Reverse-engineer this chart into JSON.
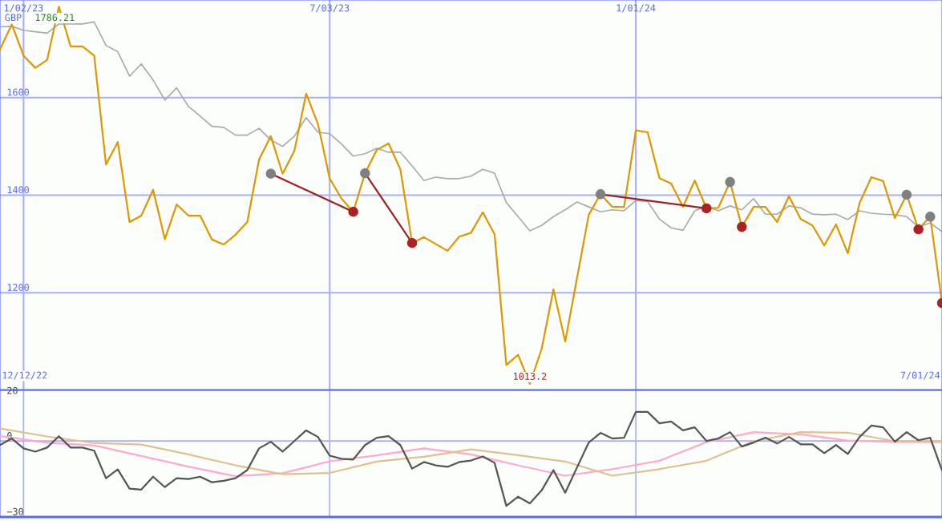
{
  "chart_data": [
    {
      "type": "line",
      "x": [
        "2022-12-19",
        "2022-12-26",
        "2023-01-02",
        "2023-01-09",
        "2023-01-16",
        "2023-01-23",
        "2023-01-30",
        "2023-02-06",
        "2023-02-13",
        "2023-02-20",
        "2023-02-27",
        "2023-03-06",
        "2023-03-13",
        "2023-03-20",
        "2023-03-27",
        "2023-04-03",
        "2023-04-10",
        "2023-04-17",
        "2023-04-24",
        "2023-05-01",
        "2023-05-08",
        "2023-05-15",
        "2023-05-22",
        "2023-05-29",
        "2023-06-05",
        "2023-06-12",
        "2023-06-19",
        "2023-06-26",
        "2023-07-03",
        "2023-07-10",
        "2023-07-17",
        "2023-07-24",
        "2023-07-31",
        "2023-08-07",
        "2023-08-14",
        "2023-08-21",
        "2023-08-28",
        "2023-09-04",
        "2023-09-11",
        "2023-09-18",
        "2023-09-25",
        "2023-10-02",
        "2023-10-09",
        "2023-10-16",
        "2023-10-23",
        "2023-10-30",
        "2023-11-06",
        "2023-11-13",
        "2023-11-20",
        "2023-11-27",
        "2023-12-04",
        "2023-12-11",
        "2023-12-18",
        "2023-12-25",
        "2024-01-01",
        "2024-01-08",
        "2024-01-15",
        "2024-01-22",
        "2024-01-29",
        "2024-02-05",
        "2024-02-12",
        "2024-02-19",
        "2024-02-26",
        "2024-03-04",
        "2024-03-11",
        "2024-03-18",
        "2024-03-25",
        "2024-04-01",
        "2024-04-08",
        "2024-04-15",
        "2024-04-22",
        "2024-04-29",
        "2024-05-06",
        "2024-05-13",
        "2024-05-20",
        "2024-05-27",
        "2024-06-03",
        "2024-06-10",
        "2024-06-17",
        "2024-06-24",
        "2024-07-01"
      ],
      "series": [
        {
          "color": "#aaaaaa",
          "values": [
            1745,
            1746,
            1738,
            1735,
            1732,
            1751,
            1751,
            1751,
            1755,
            1707,
            1694,
            1644,
            1669,
            1636,
            1595,
            1620,
            1582,
            1562,
            1541,
            1539,
            1523,
            1523,
            1537,
            1513,
            1500,
            1521,
            1559,
            1529,
            1526,
            1505,
            1480,
            1485,
            1496,
            1488,
            1488,
            1460,
            1430,
            1437,
            1434,
            1434,
            1439,
            1453,
            1445,
            1385,
            1356,
            1327,
            1338,
            1356,
            1370,
            1386,
            1376,
            1366,
            1370,
            1368,
            1389,
            1387,
            1351,
            1333,
            1328,
            1368,
            1378,
            1368,
            1378,
            1370,
            1393,
            1361,
            1361,
            1378,
            1374,
            1361,
            1360,
            1361,
            1350,
            1368,
            1363,
            1361,
            1360,
            1356,
            1335,
            1343,
            1325
          ]
        },
        {
          "color": "#dd9900",
          "values": [
            1699,
            1750,
            1686,
            1661,
            1677,
            1786.21,
            1705,
            1705,
            1686,
            1463,
            1509,
            1345,
            1358,
            1411,
            1310,
            1381,
            1358,
            1358,
            1309,
            1299,
            1319,
            1345,
            1473,
            1521,
            1444,
            1491,
            1608,
            1546,
            1434,
            1393,
            1366,
            1445,
            1493,
            1506,
            1453,
            1302,
            1314,
            1300,
            1286,
            1315,
            1323,
            1365,
            1320,
            1052,
            1073,
            1013.2,
            1085,
            1207,
            1100,
            1230,
            1360,
            1402,
            1376,
            1376,
            1533,
            1529,
            1435,
            1424,
            1376,
            1430,
            1373,
            1374,
            1427,
            1335,
            1376,
            1376,
            1345,
            1398,
            1351,
            1338,
            1297,
            1340,
            1281,
            1384,
            1437,
            1429,
            1353,
            1401,
            1330,
            1356,
            1179
          ]
        },
        {
          "color": "#992222",
          "x": [
            "2023-05-29",
            "2023-07-17"
          ],
          "values": [
            1444,
            1366
          ]
        },
        {
          "color": "#992222",
          "x": [
            "2023-07-24",
            "2023-08-21"
          ],
          "values": [
            1445,
            1302
          ]
        },
        {
          "color": "#992222",
          "x": [
            "2023-12-11",
            "2024-02-12"
          ],
          "values": [
            1402,
            1373
          ]
        },
        {
          "type": "scatter",
          "color": "#808080",
          "x": [
            "2023-05-29",
            "2023-07-24",
            "2023-12-11",
            "2024-02-26",
            "2024-06-10",
            "2024-06-24"
          ],
          "values": [
            1444,
            1445,
            1402,
            1427,
            1401,
            1356
          ]
        },
        {
          "type": "scatter",
          "color": "#aa2222",
          "x": [
            "2023-07-17",
            "2023-08-21",
            "2024-02-12",
            "2024-03-04",
            "2024-06-17",
            "2024-07-01"
          ],
          "values": [
            1366,
            1302,
            1373,
            1335,
            1330,
            1179
          ]
        }
      ],
      "xlim": [
        "2022-12-19",
        "2024-07-01"
      ],
      "xticks": [
        {
          "value": "2023-01-02",
          "label": "1/02/23"
        },
        {
          "value": "2023-07-03",
          "label": "7/03/23"
        },
        {
          "value": "2024-01-01",
          "label": "1/01/24"
        }
      ],
      "ylim": [
        1000,
        1800
      ],
      "yticks": [
        1200,
        1400,
        1600
      ],
      "grid": true,
      "annotations": [
        "GBP",
        "1786.21",
        "12/12/22",
        "7/01/24",
        {
          "text": "1013.2",
          "x": "2023-10-30",
          "y": 1013.2
        }
      ]
    },
    {
      "type": "line",
      "x": [
        "2022-12-19",
        "2022-12-26",
        "2023-01-02",
        "2023-01-09",
        "2023-01-16",
        "2023-01-23",
        "2023-01-30",
        "2023-02-06",
        "2023-02-13",
        "2023-02-20",
        "2023-02-27",
        "2023-03-06",
        "2023-03-13",
        "2023-03-20",
        "2023-03-27",
        "2023-04-03",
        "2023-04-10",
        "2023-04-17",
        "2023-04-24",
        "2023-05-01",
        "2023-05-08",
        "2023-05-15",
        "2023-05-22",
        "2023-05-29",
        "2023-06-05",
        "2023-06-12",
        "2023-06-19",
        "2023-06-26",
        "2023-07-03",
        "2023-07-10",
        "2023-07-17",
        "2023-07-24",
        "2023-07-31",
        "2023-08-07",
        "2023-08-14",
        "2023-08-21",
        "2023-08-28",
        "2023-09-04",
        "2023-09-11",
        "2023-09-18",
        "2023-09-25",
        "2023-10-02",
        "2023-10-09",
        "2023-10-16",
        "2023-10-23",
        "2023-10-30",
        "2023-11-06",
        "2023-11-13",
        "2023-11-20",
        "2023-11-27",
        "2023-12-04",
        "2023-12-11",
        "2023-12-18",
        "2023-12-25",
        "2024-01-01",
        "2024-01-08",
        "2024-01-15",
        "2024-01-22",
        "2024-01-29",
        "2024-02-05",
        "2024-02-12",
        "2024-02-19",
        "2024-02-26",
        "2024-03-04",
        "2024-03-11",
        "2024-03-18",
        "2024-03-25",
        "2024-04-01",
        "2024-04-08",
        "2024-04-15",
        "2024-04-22",
        "2024-04-29",
        "2024-05-06",
        "2024-05-13",
        "2024-05-20",
        "2024-05-27",
        "2024-06-03",
        "2024-06-10",
        "2024-06-17",
        "2024-06-24",
        "2024-07-01"
      ],
      "series": [
        {
          "color": "#ffaacc",
          "x": [
            "2022-12-19",
            "2023-01-16",
            "2023-02-13",
            "2023-03-13",
            "2023-04-10",
            "2023-05-08",
            "2023-06-05",
            "2023-07-03",
            "2023-07-31",
            "2023-08-28",
            "2023-09-25",
            "2023-10-23",
            "2023-11-20",
            "2023-12-18",
            "2024-01-15",
            "2024-02-12",
            "2024-03-11",
            "2024-04-08",
            "2024-05-06",
            "2024-06-03",
            "2024-07-01"
          ],
          "values": [
            2.0,
            -0.7,
            -1.7,
            -5.9,
            -10.1,
            -13.9,
            -12.7,
            -8.0,
            -5.7,
            -2.9,
            -5.3,
            -9.6,
            -13.7,
            -11.1,
            -7.8,
            -0.4,
            3.5,
            2.6,
            0.2,
            -0.4,
            -0.4
          ]
        },
        {
          "color": "#e0c090",
          "x": [
            "2022-12-19",
            "2023-01-16",
            "2023-02-13",
            "2023-03-13",
            "2023-04-10",
            "2023-05-08",
            "2023-06-05",
            "2023-07-03",
            "2023-07-31",
            "2023-08-28",
            "2023-09-25",
            "2023-10-23",
            "2023-11-20",
            "2023-12-18",
            "2024-01-15",
            "2024-02-12",
            "2024-03-11",
            "2024-04-08",
            "2024-05-06",
            "2024-06-03",
            "2024-07-01"
          ],
          "values": [
            4.9,
            1.8,
            -0.8,
            -1.4,
            -5.3,
            -9.6,
            -13.1,
            -12.6,
            -8.1,
            -6.2,
            -3.3,
            -5.6,
            -8.1,
            -13.7,
            -11.1,
            -7.8,
            -0.1,
            3.5,
            3.3,
            -0.1,
            -0.3
          ]
        },
        {
          "color": "#555555",
          "values": [
            -1.6,
            1.0,
            -2.9,
            -4.2,
            -2.6,
            1.9,
            -2.6,
            -2.6,
            -3.8,
            -14.7,
            -11.2,
            -18.8,
            -19.2,
            -14.1,
            -18.2,
            -14.7,
            -15.0,
            -14.1,
            -16.3,
            -15.7,
            -14.7,
            -11.5,
            -2.9,
            -0.3,
            -4.2,
            0,
            4.2,
            1.6,
            -5.8,
            -7.0,
            -7.3,
            -1.6,
            1.3,
            1.9,
            -1.6,
            -10.9,
            -8.3,
            -9.6,
            -10.2,
            -8.3,
            -7.7,
            -6.1,
            -8.6,
            -25.6,
            -22.0,
            -24.6,
            -19.5,
            -11.5,
            -20.4,
            -10.5,
            -0.6,
            3.2,
            1.0,
            1.3,
            11.5,
            11.5,
            7.0,
            7.7,
            4.2,
            5.4,
            0,
            1.0,
            3.5,
            -2.2,
            -0.6,
            1.3,
            -1.0,
            1.6,
            -1.3,
            -1.3,
            -4.8,
            -1.6,
            -5.1,
            1.6,
            6.1,
            5.4,
            -0.3,
            3.5,
            0.3,
            1.3,
            -11.5
          ]
        }
      ],
      "xlim": [
        "2022-12-19",
        "2024-07-01"
      ],
      "xticks": [
        {
          "value": "2023-01-02",
          "label": null
        },
        {
          "value": "2023-07-03",
          "label": null
        },
        {
          "value": "2024-01-01",
          "label": null
        }
      ],
      "ylim": [
        -30,
        20
      ],
      "yticks": [
        {
          "value": -30,
          "label": "−30"
        },
        0,
        20
      ],
      "grid": true,
      "tick_labels": "y"
    }
  ]
}
